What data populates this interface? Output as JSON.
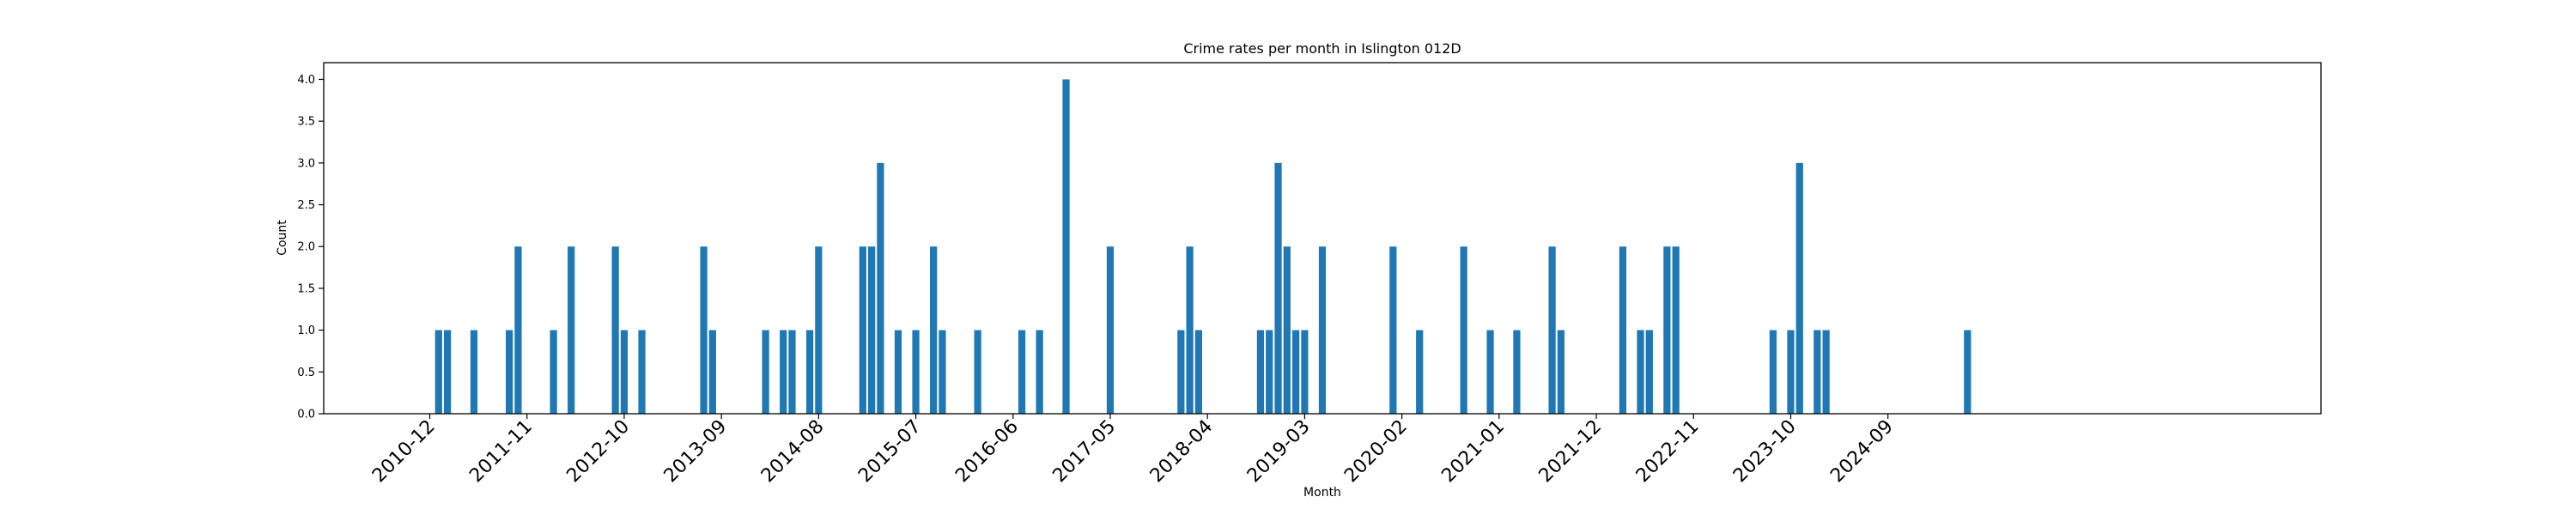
{
  "chart_data": {
    "type": "bar",
    "title": "Crime rates per month in Islington 012D",
    "xlabel": "Month",
    "ylabel": "Count",
    "ylim": [
      0,
      4.2
    ],
    "yticks": [
      0,
      0.5,
      1,
      1.5,
      2,
      2.5,
      3,
      3.5,
      4
    ],
    "ytick_labels": [
      "0.0",
      "0.5",
      "1.0",
      "1.5",
      "2.0",
      "2.5",
      "3.0",
      "3.5",
      "4.0"
    ],
    "xticks": [
      "2010-12",
      "2011-11",
      "2012-10",
      "2013-09",
      "2014-08",
      "2015-07",
      "2016-06",
      "2017-05",
      "2018-04",
      "2019-03",
      "2020-02",
      "2021-01",
      "2021-12",
      "2022-11",
      "2023-10",
      "2024-09"
    ],
    "xlim": [
      "2009-12",
      "2028-10"
    ],
    "color": "#1f77b4",
    "grid": false,
    "x": [
      "2011-01",
      "2011-02",
      "2011-05",
      "2011-09",
      "2011-10",
      "2012-02",
      "2012-04",
      "2012-09",
      "2012-10",
      "2012-12",
      "2013-07",
      "2013-08",
      "2014-02",
      "2014-04",
      "2014-05",
      "2014-07",
      "2014-08",
      "2015-01",
      "2015-02",
      "2015-03",
      "2015-05",
      "2015-07",
      "2015-09",
      "2015-10",
      "2016-02",
      "2016-07",
      "2016-09",
      "2016-12",
      "2017-05",
      "2018-01",
      "2018-02",
      "2018-03",
      "2018-10",
      "2018-11",
      "2018-12",
      "2019-01",
      "2019-02",
      "2019-03",
      "2019-05",
      "2020-01",
      "2020-04",
      "2020-09",
      "2020-12",
      "2021-03",
      "2021-07",
      "2021-08",
      "2022-03",
      "2022-05",
      "2022-06",
      "2022-08",
      "2022-09",
      "2023-08",
      "2023-10",
      "2023-11",
      "2024-01",
      "2024-02",
      "2025-06"
    ],
    "values": [
      1,
      1,
      1,
      1,
      2,
      1,
      2,
      2,
      1,
      1,
      2,
      1,
      1,
      1,
      1,
      1,
      2,
      2,
      2,
      3,
      1,
      1,
      2,
      1,
      1,
      1,
      1,
      4,
      2,
      1,
      2,
      1,
      1,
      1,
      3,
      2,
      1,
      1,
      2,
      2,
      1,
      2,
      1,
      1,
      2,
      1,
      2,
      1,
      1,
      2,
      2,
      1,
      1,
      3,
      1,
      1,
      1
    ]
  }
}
